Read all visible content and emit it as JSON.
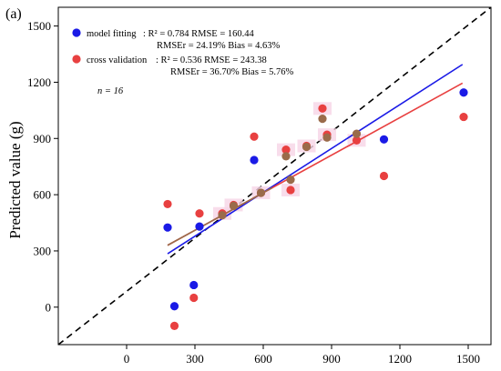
{
  "panel_label": "(a)",
  "chart_data": {
    "type": "scatter",
    "ylabel": "Predicted value (g)",
    "xlabel": "",
    "xlim": [
      -300,
      1600
    ],
    "ylim": [
      -200,
      1600
    ],
    "xticks": [
      0,
      300,
      600,
      900,
      1200,
      1500
    ],
    "yticks": [
      0,
      300,
      600,
      900,
      1200,
      1500
    ],
    "x_tick_labels": [
      "0",
      "300",
      "600",
      "900",
      "1200",
      "1500"
    ],
    "y_tick_labels": [
      "0",
      "300",
      "600",
      "900",
      "1200",
      "1500"
    ],
    "grid": false,
    "legend_position": "top-left",
    "series": [
      {
        "name": "model fitting",
        "color": "#1a1ae6",
        "stats_line1": ": R² = 0.784  RMSE = 160.44",
        "stats_line2": "RMSEr = 24.19%  Bias = 4.63%",
        "points": [
          [
            180,
            425
          ],
          [
            210,
            5
          ],
          [
            295,
            118
          ],
          [
            320,
            430
          ],
          [
            420,
            490
          ],
          [
            470,
            540
          ],
          [
            560,
            785
          ],
          [
            590,
            610
          ],
          [
            700,
            805
          ],
          [
            720,
            680
          ],
          [
            790,
            855
          ],
          [
            860,
            1005
          ],
          [
            880,
            905
          ],
          [
            1010,
            925
          ],
          [
            1130,
            895
          ],
          [
            1480,
            1145
          ]
        ],
        "fit_line": [
          [
            180,
            285
          ],
          [
            1475,
            1295
          ]
        ]
      },
      {
        "name": "cross validation",
        "color": "#e84040",
        "stats_line1": ": R² = 0.536  RMSE = 243.38",
        "stats_line2": "RMSEr = 36.70%  Bias = 5.76%",
        "points": [
          [
            180,
            550
          ],
          [
            210,
            -100
          ],
          [
            295,
            50
          ],
          [
            320,
            500
          ],
          [
            420,
            500
          ],
          [
            470,
            545
          ],
          [
            560,
            910
          ],
          [
            590,
            610
          ],
          [
            700,
            840
          ],
          [
            720,
            625
          ],
          [
            790,
            860
          ],
          [
            860,
            1060
          ],
          [
            880,
            920
          ],
          [
            1010,
            890
          ],
          [
            1130,
            700
          ],
          [
            1480,
            1015
          ]
        ],
        "fit_line": [
          [
            180,
            330
          ],
          [
            1475,
            1195
          ]
        ]
      }
    ],
    "overlap_color": "#9a6b4a",
    "reference_line": {
      "style": "dashed",
      "from": [
        -300,
        -200
      ],
      "to": [
        1600,
        1600
      ],
      "color": "#000000"
    },
    "annotation": "n = 16"
  }
}
